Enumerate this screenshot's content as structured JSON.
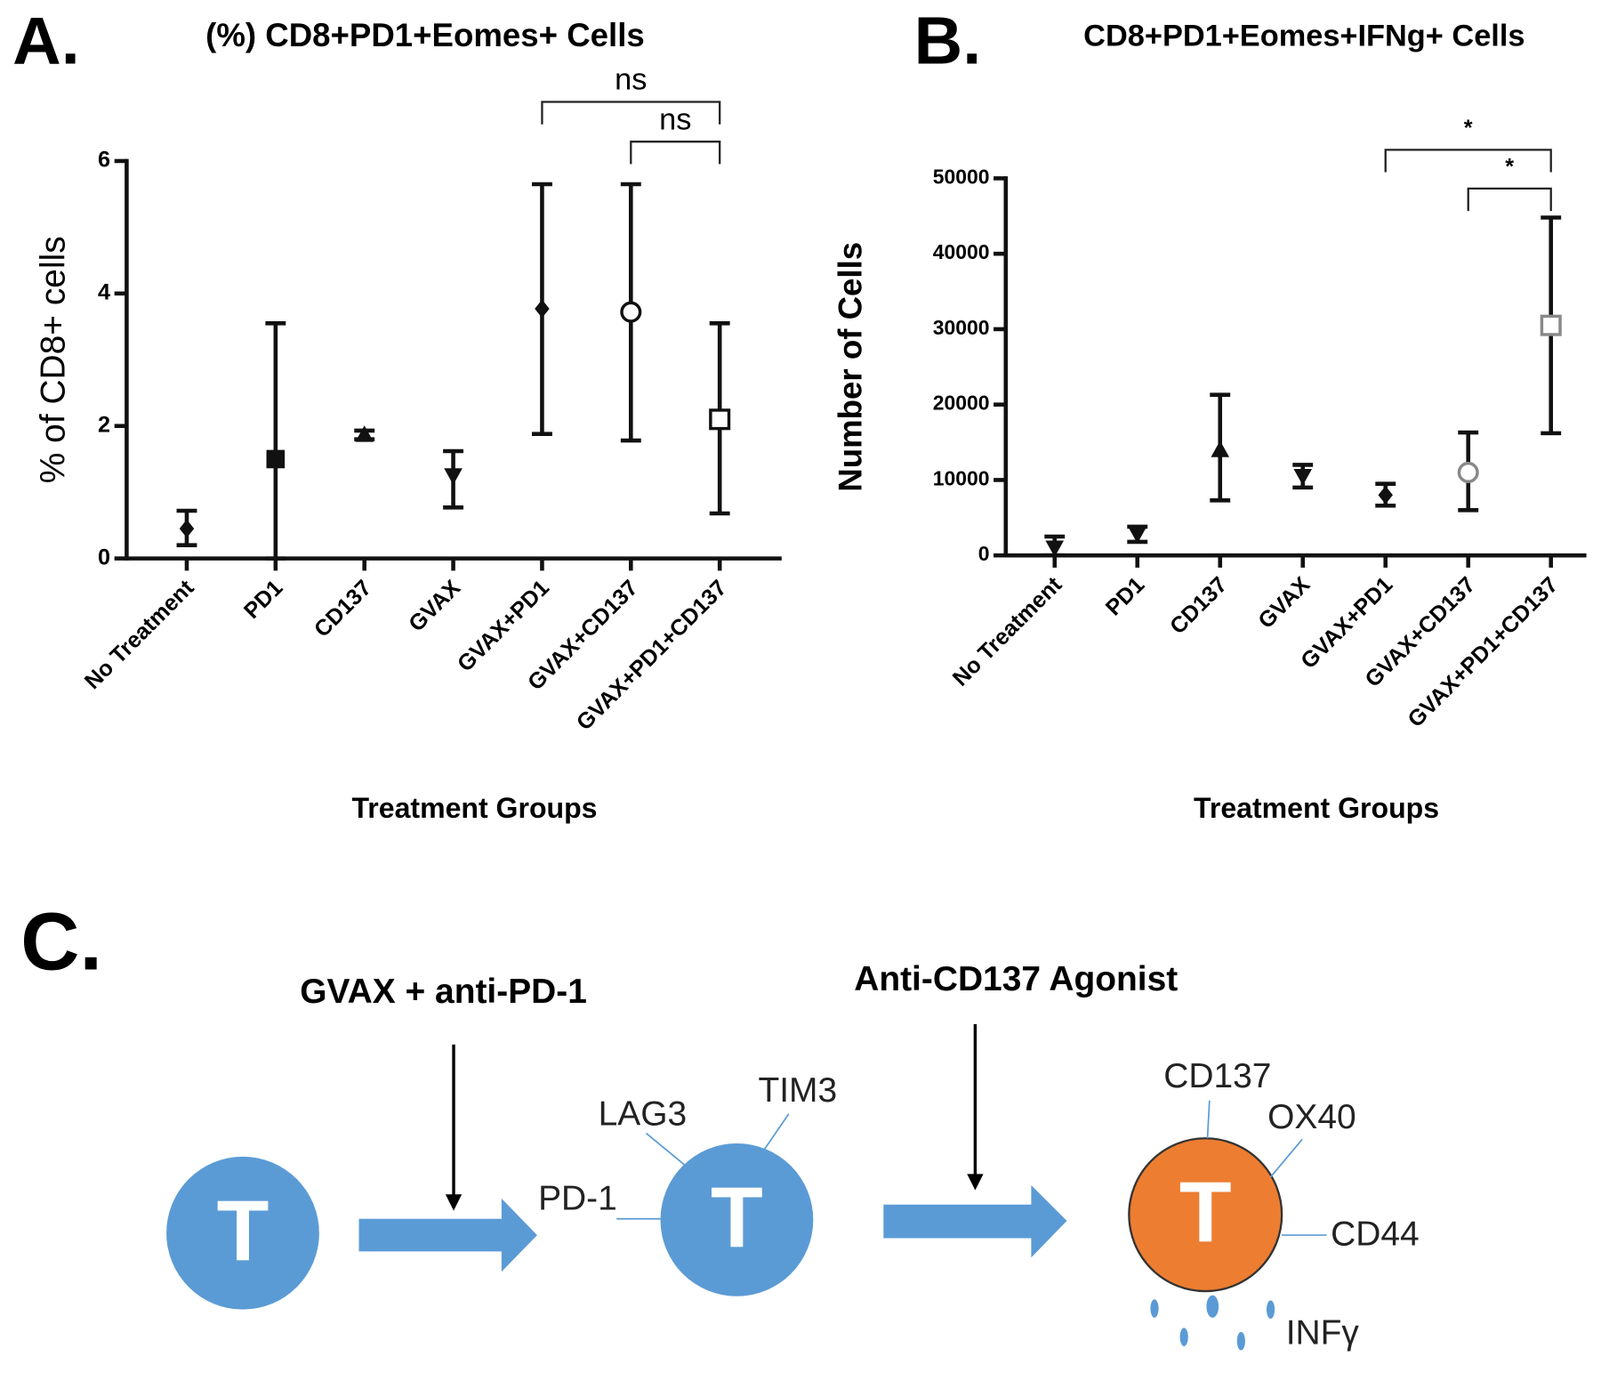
{
  "chart_data": [
    {
      "type": "errorbar",
      "panel": "A.",
      "title": "(%) CD8+PD1+Eomes+ Cells",
      "ylabel": "% of CD8+ cells",
      "xlabel": "Treatment  Groups",
      "categories": [
        "No Treatment",
        "PD1",
        "CD137",
        "GVAX",
        "GVAX+PD1",
        "GVAX+CD137",
        "GVAX+PD1+CD137"
      ],
      "values": [
        0.45,
        1.5,
        1.87,
        1.25,
        3.77,
        3.72,
        2.1
      ],
      "lower": [
        0.2,
        0,
        1.8,
        0.77,
        1.88,
        1.78,
        0.68
      ],
      "upper": [
        0.72,
        3.55,
        1.93,
        1.62,
        5.65,
        5.65,
        3.55
      ],
      "markers": [
        "diamond",
        "square",
        "triangle",
        "triangle-down",
        "diamond",
        "circle-open",
        "square-open"
      ],
      "marker_colors": [
        "#111",
        "#111",
        "#111",
        "#111",
        "#111",
        "#111",
        "#111"
      ],
      "ylim": [
        0,
        6
      ],
      "yticks": [
        0,
        2,
        4,
        6
      ],
      "annotations": [
        {
          "text": "ns",
          "from": "GVAX+PD1",
          "to": "GVAX+PD1+CD137"
        },
        {
          "text": "ns",
          "from": "GVAX+CD137",
          "to": "GVAX+PD1+CD137"
        }
      ]
    },
    {
      "type": "errorbar",
      "panel": "B.",
      "title": "CD8+PD1+Eomes+IFNg+ Cells",
      "ylabel": "Number of Cells",
      "xlabel": "Treatment  Groups",
      "categories": [
        "No Treatment",
        "PD1",
        "CD137",
        "GVAX",
        "GVAX+PD1",
        "GVAX+CD137",
        "GVAX+PD1+CD137"
      ],
      "values": [
        1000,
        2800,
        14000,
        10500,
        8000,
        11000,
        30500
      ],
      "lower": [
        0,
        1800,
        7300,
        9000,
        6600,
        6000,
        16200
      ],
      "upper": [
        2500,
        3800,
        21300,
        12000,
        9500,
        16300,
        44800
      ],
      "markers": [
        "triangle-down",
        "triangle-down",
        "triangle",
        "triangle-down",
        "diamond",
        "circle-open",
        "square-open"
      ],
      "marker_colors": [
        "#111",
        "#111",
        "#111",
        "#111",
        "#111",
        "#888",
        "#888"
      ],
      "ylim": [
        0,
        50000
      ],
      "yticks": [
        0,
        10000,
        20000,
        30000,
        40000,
        50000
      ],
      "annotations": [
        {
          "text": "*",
          "from": "GVAX+PD1",
          "to": "GVAX+PD1+CD137"
        },
        {
          "text": "*",
          "from": "GVAX+CD137",
          "to": "GVAX+PD1+CD137"
        }
      ]
    }
  ],
  "diagram": {
    "panel": "C.",
    "steps": [
      "GVAX + anti-PD-1",
      "Anti-CD137 Agonist"
    ],
    "cells": [
      "T",
      "T",
      "T"
    ],
    "markers": [
      "LAG3",
      "TIM3",
      "PD-1",
      "CD137",
      "OX40",
      "CD44",
      "INFγ"
    ]
  }
}
